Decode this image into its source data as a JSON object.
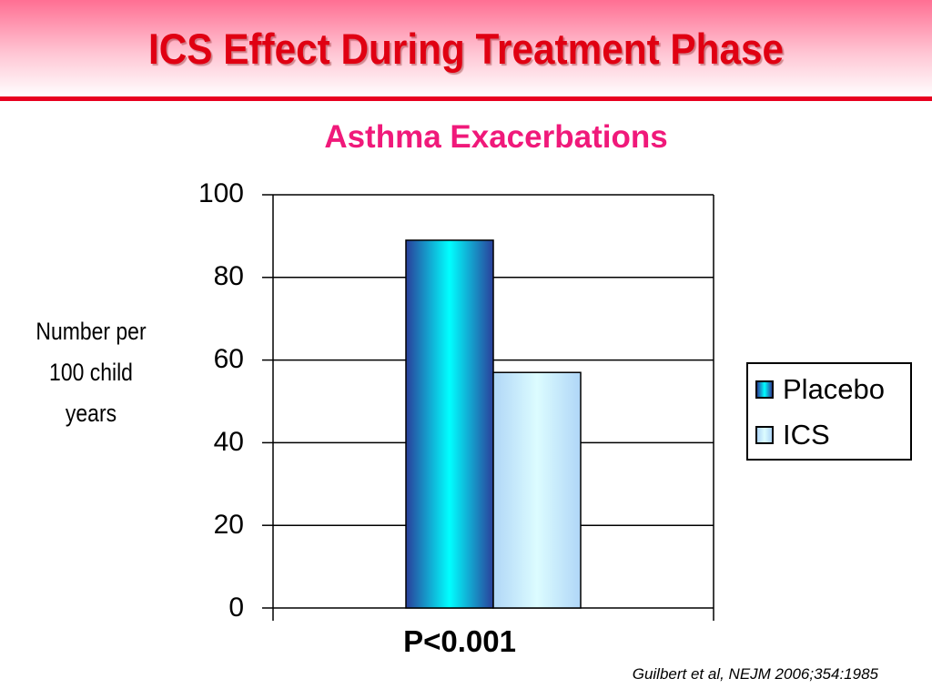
{
  "slide": {
    "title": "ICS Effect During Treatment Phase",
    "citation": "Guilbert et al, NEJM 2006;354:1985",
    "p_value": "P<0.001"
  },
  "chart_data": {
    "type": "bar",
    "title": "Asthma Exacerbations",
    "ylabel_lines": [
      "Number per",
      "100 child",
      "years"
    ],
    "ylim": [
      0,
      100
    ],
    "yticks": [
      "0",
      "20",
      "40",
      "60",
      "80",
      "100"
    ],
    "grid": true,
    "legend_position": "right",
    "categories": [
      "P<0.001"
    ],
    "series": [
      {
        "name": "Placebo",
        "values": [
          89
        ],
        "color_dark": "#2a3f9a",
        "color_light": "#00ffff"
      },
      {
        "name": "ICS",
        "values": [
          57
        ],
        "color_dark": "#b0d6f7",
        "color_light": "#dcfcff"
      }
    ]
  }
}
